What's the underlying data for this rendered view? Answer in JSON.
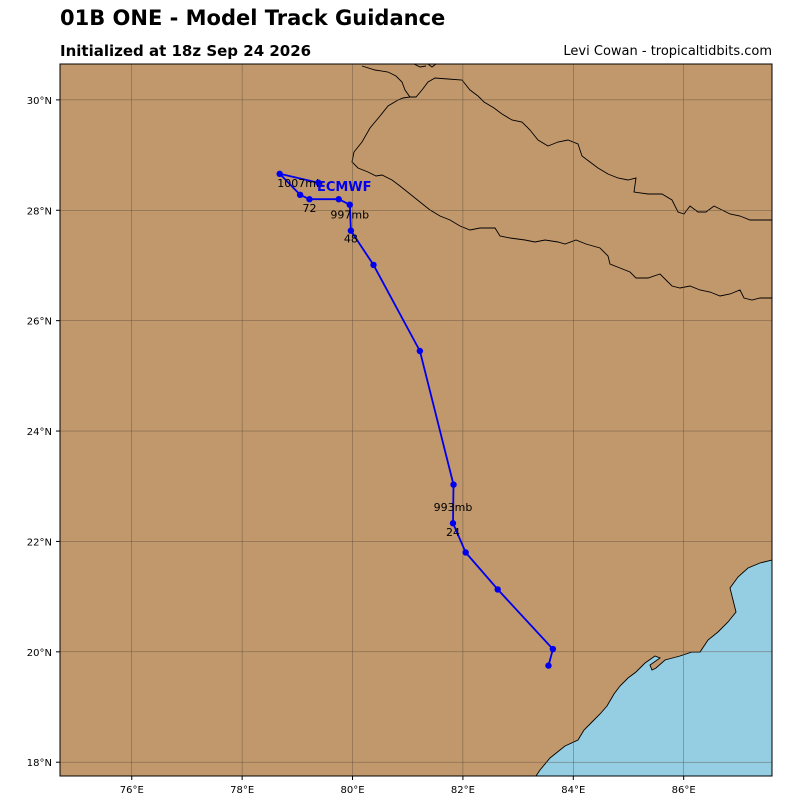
{
  "header": {
    "title": "01B ONE - Model Track Guidance",
    "subtitle": "Initialized at 18z Sep 24 2026",
    "credit": "Levi Cowan - tropicaltidbits.com"
  },
  "colors": {
    "land": "#c1986c",
    "ocean": "#95cde3",
    "track": "#0000ee",
    "grid": "#5a4a3a",
    "coast": "#000000"
  },
  "map": {
    "lon_range": [
      74.7,
      87.6
    ],
    "lat_range": [
      17.75,
      30.65
    ],
    "lon_ticks": [
      76,
      78,
      80,
      82,
      84,
      86
    ],
    "lat_ticks": [
      18,
      20,
      22,
      24,
      26,
      28,
      30
    ],
    "lon_tick_labels": [
      "76°E",
      "78°E",
      "80°E",
      "82°E",
      "84°E",
      "86°E"
    ],
    "lat_tick_labels": [
      "18°N",
      "20°N",
      "22°N",
      "24°N",
      "26°N",
      "28°N",
      "30°N"
    ],
    "grid": true
  },
  "track": {
    "model": "ECMWF",
    "points": [
      {
        "lon": 83.55,
        "lat": 19.75
      },
      {
        "lon": 83.63,
        "lat": 20.05
      },
      {
        "lon": 82.63,
        "lat": 21.13
      },
      {
        "lon": 82.05,
        "lat": 21.8
      },
      {
        "lon": 81.82,
        "lat": 22.33
      },
      {
        "lon": 81.83,
        "lat": 23.03
      },
      {
        "lon": 81.22,
        "lat": 25.45
      },
      {
        "lon": 80.38,
        "lat": 27.01
      },
      {
        "lon": 79.97,
        "lat": 27.63
      },
      {
        "lon": 79.95,
        "lat": 28.1
      },
      {
        "lon": 79.75,
        "lat": 28.2
      },
      {
        "lon": 79.22,
        "lat": 28.2
      },
      {
        "lon": 79.05,
        "lat": 28.28
      },
      {
        "lon": 78.68,
        "lat": 28.66
      },
      {
        "lon": 79.38,
        "lat": 28.5
      }
    ],
    "labels": [
      {
        "text": "993mb",
        "lon": 81.82,
        "lat": 22.55
      },
      {
        "text": "24",
        "lon": 81.82,
        "lat": 22.1
      },
      {
        "text": "997mb",
        "lon": 79.95,
        "lat": 27.85
      },
      {
        "text": "48",
        "lon": 79.97,
        "lat": 27.42
      },
      {
        "text": "1007mb",
        "lon": 79.05,
        "lat": 28.42
      },
      {
        "text": "72",
        "lon": 79.22,
        "lat": 27.97
      }
    ],
    "model_label_pos": {
      "lon": 79.85,
      "lat": 28.35
    }
  }
}
